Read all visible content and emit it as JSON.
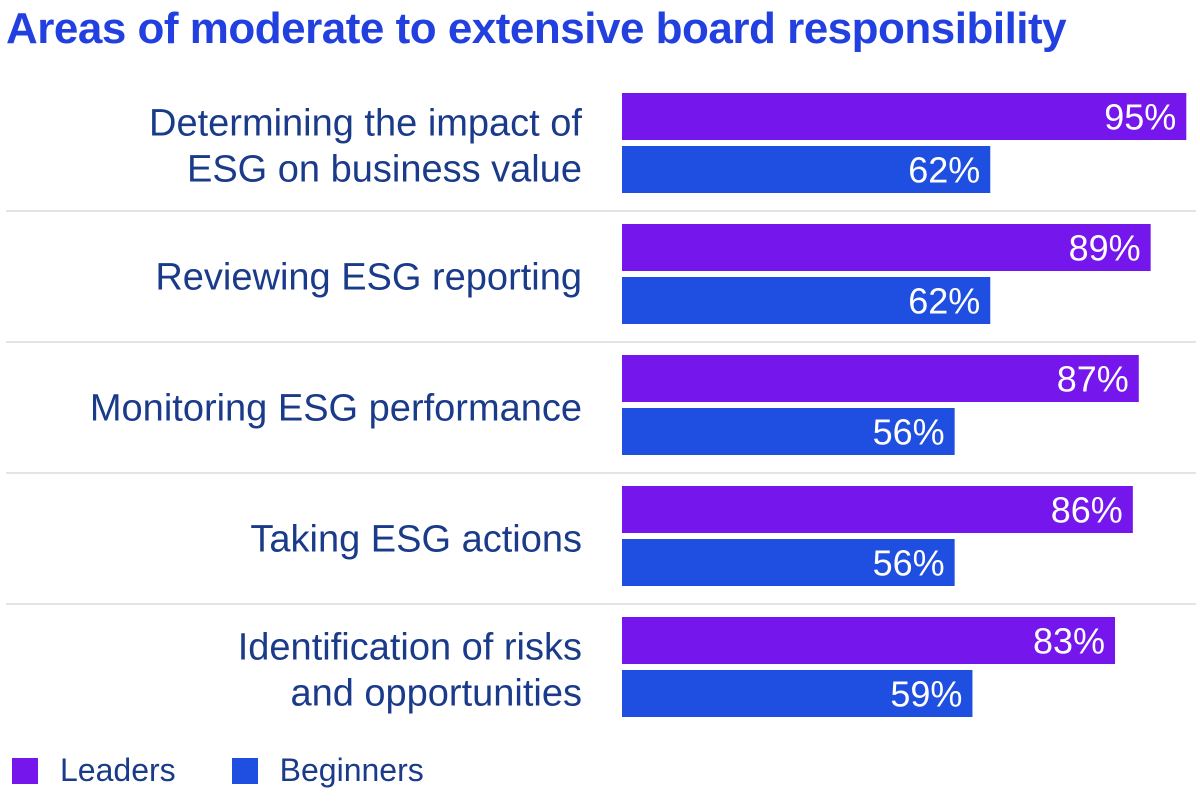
{
  "chart_data": {
    "type": "bar",
    "orientation": "horizontal",
    "title": "Areas of moderate to extensive board responsibility",
    "categories": [
      [
        "Determining the impact of",
        "ESG on business value"
      ],
      [
        "Reviewing ESG reporting"
      ],
      [
        "Monitoring ESG performance"
      ],
      [
        "Taking ESG actions"
      ],
      [
        "Identification of risks",
        "and opportunities"
      ]
    ],
    "series": [
      {
        "name": "Leaders",
        "color": "#7416ec",
        "values": [
          95,
          89,
          87,
          86,
          83
        ]
      },
      {
        "name": "Beginners",
        "color": "#1f4fe0",
        "values": [
          62,
          62,
          56,
          56,
          59
        ]
      }
    ],
    "value_suffix": "%",
    "xlim": [
      0,
      100
    ],
    "grid": false,
    "legend_position": "bottom-left"
  }
}
